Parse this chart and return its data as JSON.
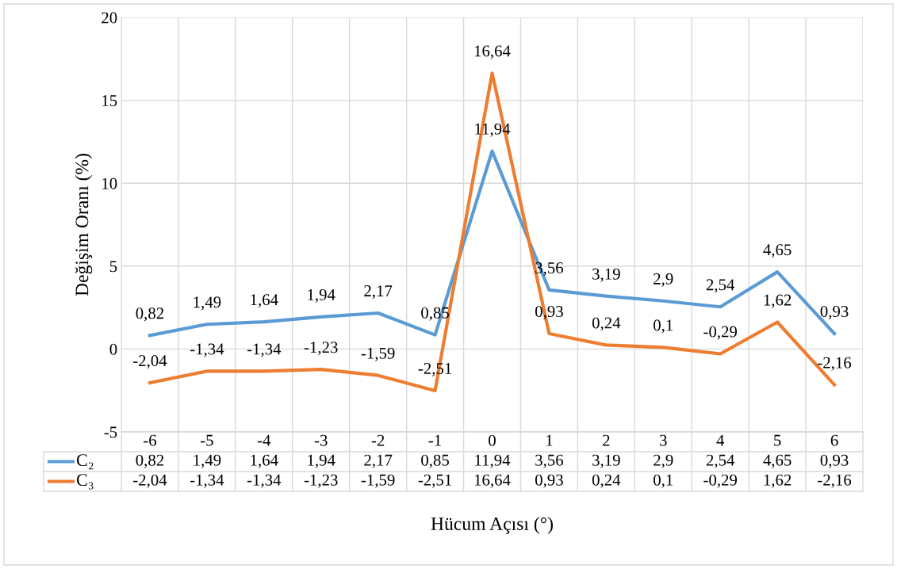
{
  "chart_data": {
    "type": "line",
    "xlabel": "Hücum Açısı (°)",
    "ylabel": "Değişim Oranı (%)",
    "categories": [
      "-6",
      "-5",
      "-4",
      "-3",
      "-2",
      "-1",
      "0",
      "1",
      "2",
      "3",
      "4",
      "5",
      "6"
    ],
    "series": [
      {
        "name": "C₂",
        "color": "#5b9bd5",
        "values": [
          0.82,
          1.49,
          1.64,
          1.94,
          2.17,
          0.85,
          11.94,
          3.56,
          3.19,
          2.9,
          2.54,
          4.65,
          0.93
        ],
        "value_labels": [
          "0,82",
          "1,49",
          "1,64",
          "1,94",
          "2,17",
          "0,85",
          "11,94",
          "3,56",
          "3,19",
          "2,9",
          "2,54",
          "4,65",
          "0,93"
        ]
      },
      {
        "name": "C₃",
        "color": "#ed7d31",
        "values": [
          -2.04,
          -1.34,
          -1.34,
          -1.23,
          -1.59,
          -2.51,
          16.64,
          0.93,
          0.24,
          0.1,
          -0.29,
          1.62,
          -2.16
        ],
        "value_labels": [
          "-2,04",
          "-1,34",
          "-1,34",
          "-1,23",
          "-1,59",
          "-2,51",
          "16,64",
          "0,93",
          "0,24",
          "0,1",
          "-0,29",
          "1,62",
          "-2,16"
        ]
      }
    ],
    "ylim": [
      -5,
      20
    ],
    "yticks": [
      -5,
      0,
      5,
      10,
      15,
      20
    ],
    "grid": true,
    "legend": "bottom",
    "marker": "none",
    "line_style": "solid"
  }
}
